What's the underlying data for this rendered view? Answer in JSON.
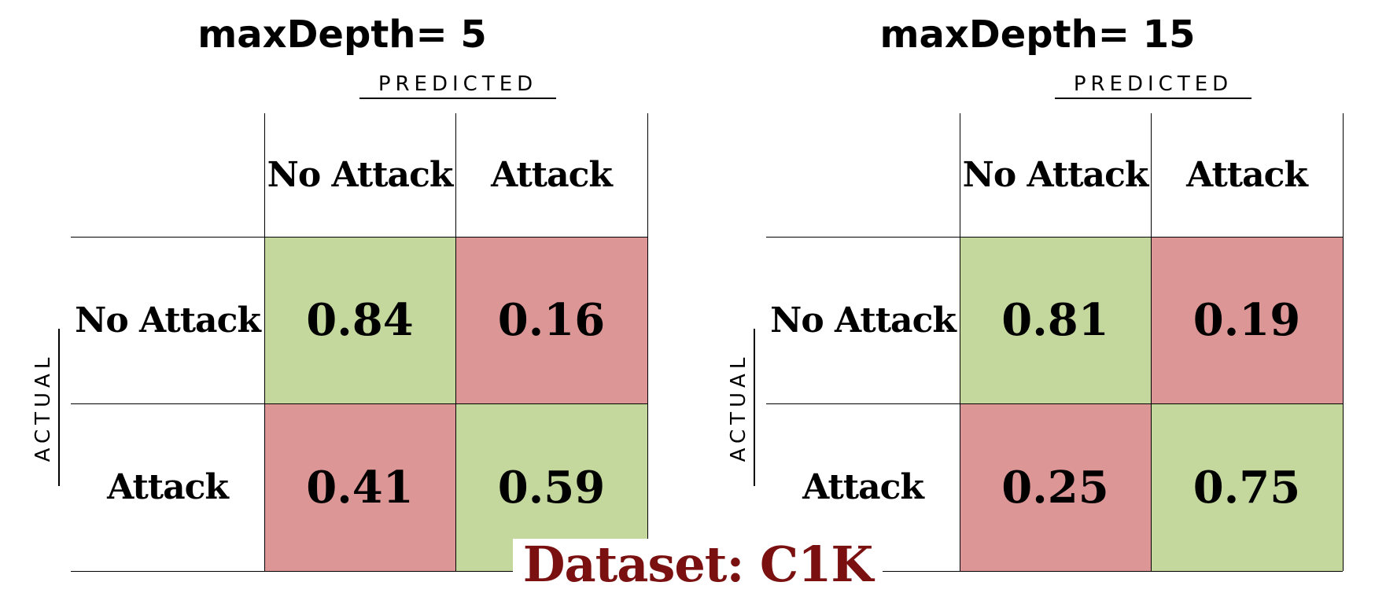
{
  "chart_data": [
    {
      "type": "heatmap",
      "title": "maxDepth= 5",
      "xlabel": "Predicted",
      "ylabel": "Actual",
      "x_categories": [
        "No Attack",
        "Attack"
      ],
      "y_categories": [
        "No Attack",
        "Attack"
      ],
      "values": [
        [
          0.84,
          0.16
        ],
        [
          0.41,
          0.59
        ]
      ],
      "cell_colors": [
        [
          "#c4d89e",
          "#db9695"
        ],
        [
          "#db9695",
          "#c4d89e"
        ]
      ]
    },
    {
      "type": "heatmap",
      "title": "maxDepth= 15",
      "xlabel": "Predicted",
      "ylabel": "Actual",
      "x_categories": [
        "No Attack",
        "Attack"
      ],
      "y_categories": [
        "No Attack",
        "Attack"
      ],
      "values": [
        [
          0.81,
          0.19
        ],
        [
          0.25,
          0.75
        ]
      ],
      "cell_colors": [
        [
          "#c4d89e",
          "#db9695"
        ],
        [
          "#db9695",
          "#c4d89e"
        ]
      ]
    }
  ],
  "footer": {
    "dataset_label": "Dataset: C1K"
  },
  "colors": {
    "correct": "#c4d89e",
    "incorrect": "#db9695",
    "footer_text": "#7a1010"
  }
}
